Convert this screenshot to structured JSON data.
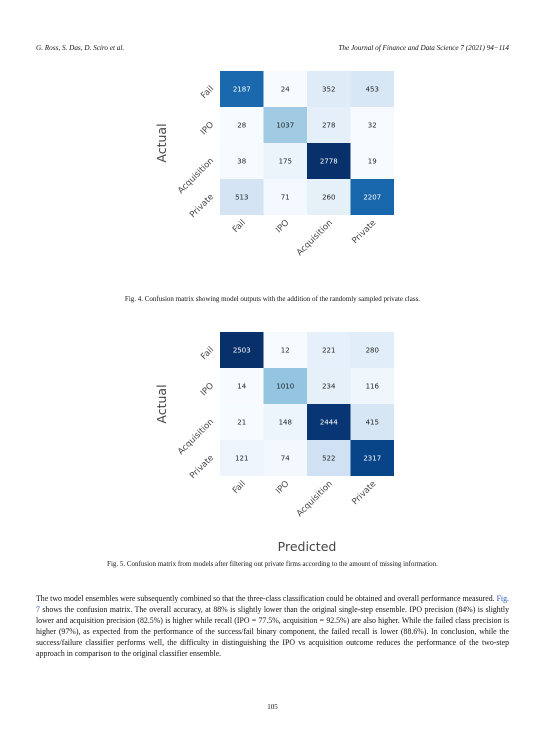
{
  "header": {
    "authors": "G. Ross, S. Das, D. Sciro et al.",
    "journal": "The Journal of Finance and Data Science 7 (2021) 94−114"
  },
  "figures": [
    {
      "caption": "Fig. 4. Confusion matrix showing model outputs with the addition of the randomly sampled private class.",
      "chart_data": {
        "type": "heatmap",
        "xlabel": "Predicted",
        "ylabel": "Actual",
        "x_categories": [
          "Fail",
          "IPO",
          "Acquisition",
          "Private"
        ],
        "y_categories": [
          "Fail",
          "IPO",
          "Acquisition",
          "Private"
        ],
        "values": [
          [
            2187,
            24,
            352,
            453
          ],
          [
            28,
            1037,
            278,
            32
          ],
          [
            38,
            175,
            2778,
            19
          ],
          [
            513,
            71,
            260,
            2207
          ]
        ],
        "colormap": "Blues"
      }
    },
    {
      "caption": "Fig. 5. Confusion matrix from models after filtering out private firms according to the amount of missing information.",
      "chart_data": {
        "type": "heatmap",
        "xlabel": "Predicted",
        "ylabel": "Actual",
        "x_categories": [
          "Fail",
          "IPO",
          "Acquisition",
          "Private"
        ],
        "y_categories": [
          "Fail",
          "IPO",
          "Acquisition",
          "Private"
        ],
        "values": [
          [
            2503,
            12,
            221,
            280
          ],
          [
            14,
            1010,
            234,
            116
          ],
          [
            21,
            148,
            2444,
            415
          ],
          [
            121,
            74,
            522,
            2317
          ]
        ],
        "colormap": "Blues"
      }
    }
  ],
  "body": {
    "p1_before_link": "The two model ensembles were subsequently combined so that the three-class classification could be obtained and overall performance measured. ",
    "p1_link": "Fig. 7",
    "p1_after_link": " shows the confusion matrix. The overall accuracy, at 88% is slightly lower than the original single-step ensemble. IPO precision (84%) is slightly lower and acquisition precision (82.5%) is higher while recall (IPO = 77.5%, acquisition = 92.5%) are also higher. While the failed class precision is higher (97%), as expected from the performance of the success/fail binary component, the failed recall is lower (88.6%). In conclusion, while the success/failure classifier performs well, the difficulty in distinguishing the IPO vs acquisition outcome reduces the performance of the two-step approach in comparison to the original classifier ensemble."
  },
  "page_number": "105"
}
